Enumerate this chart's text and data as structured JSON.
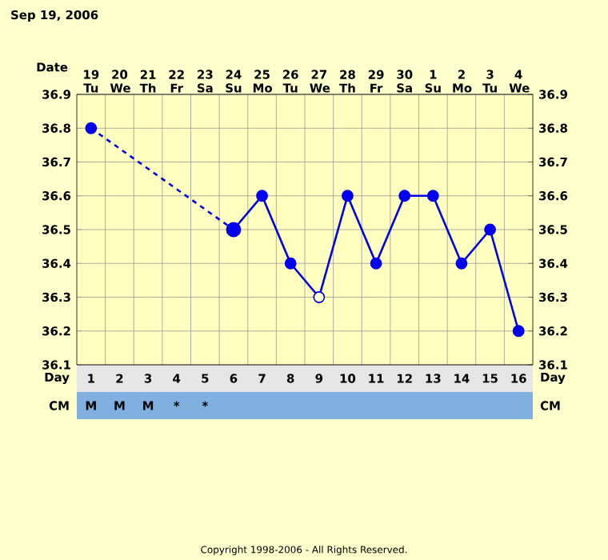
{
  "chart_data": {
    "type": "line",
    "title": "Sep 19, 2006",
    "xlabel": "Day",
    "x2label": "Date",
    "xlim": [
      0.5,
      16.5
    ],
    "xticks": [
      1,
      2,
      3,
      4,
      5,
      6,
      7,
      8,
      9,
      10,
      11,
      12,
      13,
      14,
      15,
      16
    ],
    "x2lim": [
      "2006-09-18T12:00",
      "2006-10-04T12:00"
    ],
    "x2ticks": [
      {
        "value": "2006-09-19",
        "label": "19 Tu"
      },
      {
        "value": "2006-09-20",
        "label": "20 We"
      },
      {
        "value": "2006-09-21",
        "label": "21 Th"
      },
      {
        "value": "2006-09-22",
        "label": "22 Fr"
      },
      {
        "value": "2006-09-23",
        "label": "23 Sa"
      },
      {
        "value": "2006-09-24",
        "label": "24 Su"
      },
      {
        "value": "2006-09-25",
        "label": "25 Mo"
      },
      {
        "value": "2006-09-26",
        "label": "26 Tu"
      },
      {
        "value": "2006-09-27",
        "label": "27 We"
      },
      {
        "value": "2006-09-28",
        "label": "28 Th"
      },
      {
        "value": "2006-09-29",
        "label": "29 Fr"
      },
      {
        "value": "2006-09-30",
        "label": "30 Sa"
      },
      {
        "value": "2006-10-01",
        "label": "1 Su"
      },
      {
        "value": "2006-10-02",
        "label": "2 Mo"
      },
      {
        "value": "2006-10-03",
        "label": "3 Tu"
      },
      {
        "value": "2006-10-04",
        "label": "4 We"
      }
    ],
    "ylim": [
      36.1,
      36.9
    ],
    "yticks": [
      36.1,
      36.2,
      36.3,
      36.4,
      36.5,
      36.6,
      36.7,
      36.8,
      36.9
    ],
    "y2lim": [
      36.1,
      36.9
    ],
    "y2ticks": [
      36.1,
      36.2,
      36.3,
      36.4,
      36.5,
      36.6,
      36.7,
      36.8,
      36.9
    ],
    "grid": true,
    "series": [
      {
        "x": [
          1,
          6
        ],
        "values": [
          36.8,
          36.5
        ],
        "color": "#0000ee",
        "line_style": "dashed",
        "marker": "circle"
      },
      {
        "x": [
          6,
          7,
          8,
          9,
          10,
          11,
          12,
          13,
          14,
          15,
          16
        ],
        "values": [
          36.5,
          36.6,
          36.4,
          36.3,
          36.6,
          36.4,
          36.6,
          36.6,
          36.4,
          36.5,
          36.2
        ],
        "color": "#0000ee",
        "line_style": "solid",
        "marker": "circle",
        "colors": [
          "#0000ee",
          "#0000ee",
          "#0000ee",
          "#ffffcc",
          "#0000ee",
          "#0000ee",
          "#0000ee",
          "#0000ee",
          "#0000ee",
          "#0000ee",
          "#0000ee"
        ]
      }
    ],
    "annotations": [
      "CM",
      "M",
      "M",
      "M",
      "*",
      "*",
      "Copyright 1998-2006 - All Rights Reserved."
    ]
  }
}
